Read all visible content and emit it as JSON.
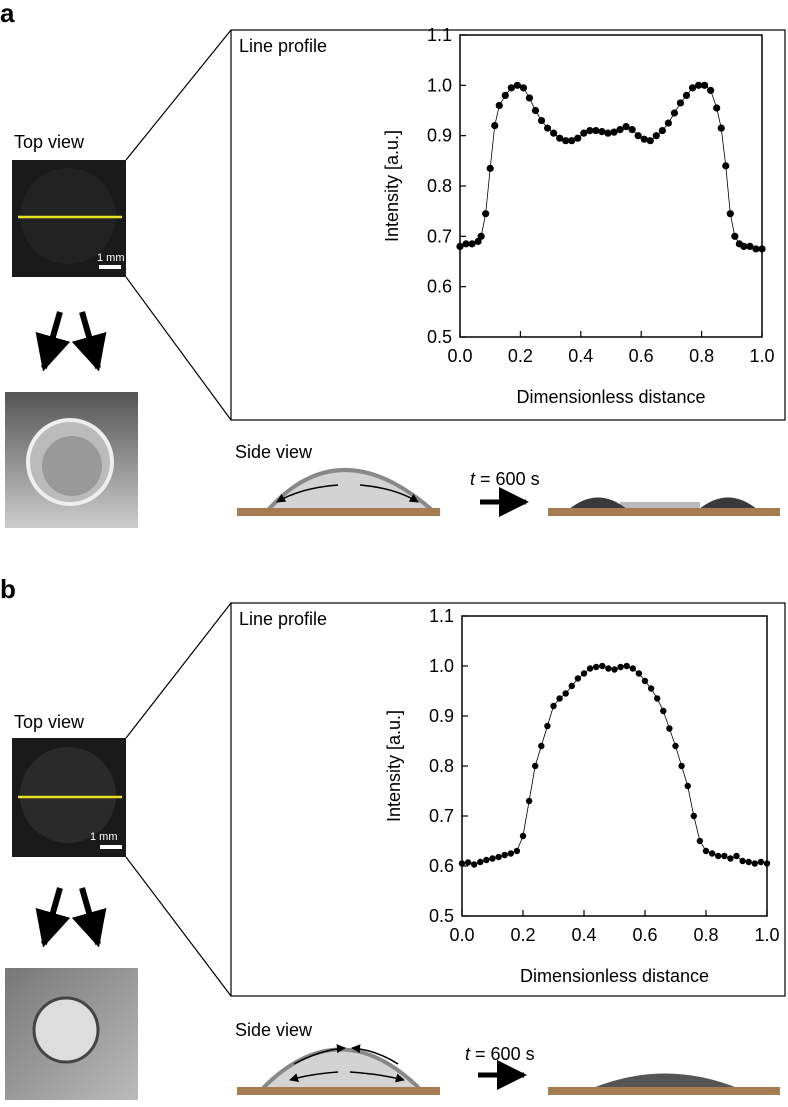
{
  "panels": [
    {
      "label": "a",
      "top_view": "Top view",
      "scale_bar": "1 mm",
      "side_view": "Side view",
      "time_symbol": "t",
      "time_value": "= 600 s"
    },
    {
      "label": "b",
      "top_view": "Top view",
      "scale_bar": "1 mm",
      "side_view": "Side view",
      "time_symbol": "t",
      "time_value": "= 600 s"
    }
  ],
  "chart_data": [
    {
      "type": "line",
      "title": "Line profile",
      "xlabel": "Dimensionless distance",
      "ylabel": "Intensity [a.u.]",
      "color": "#000000",
      "xlim": [
        0,
        1
      ],
      "ylim": [
        0.5,
        1.1
      ],
      "xticks": [
        {
          "value": 0,
          "label": "0.0"
        },
        0.2,
        0.4,
        0.6,
        0.8,
        {
          "value": 1,
          "label": "1.0"
        }
      ],
      "yticks": [
        0.5,
        0.6,
        0.7,
        0.8,
        0.9,
        {
          "value": 1,
          "label": "1.0"
        },
        1.1
      ],
      "x": [
        0,
        0.02,
        0.04,
        0.06,
        0.07,
        0.085,
        0.1,
        0.115,
        0.13,
        0.15,
        0.17,
        0.19,
        0.21,
        0.23,
        0.25,
        0.27,
        0.29,
        0.31,
        0.33,
        0.35,
        0.37,
        0.39,
        0.41,
        0.43,
        0.45,
        0.47,
        0.49,
        0.51,
        0.53,
        0.55,
        0.57,
        0.59,
        0.61,
        0.63,
        0.65,
        0.67,
        0.69,
        0.71,
        0.73,
        0.75,
        0.77,
        0.79,
        0.81,
        0.83,
        0.85,
        0.865,
        0.88,
        0.895,
        0.91,
        0.925,
        0.94,
        0.96,
        0.98,
        1.0
      ],
      "values": [
        0.68,
        0.685,
        0.685,
        0.69,
        0.7,
        0.745,
        0.835,
        0.92,
        0.96,
        0.98,
        0.995,
        1.0,
        0.995,
        0.975,
        0.95,
        0.93,
        0.915,
        0.905,
        0.895,
        0.89,
        0.89,
        0.895,
        0.905,
        0.91,
        0.91,
        0.908,
        0.905,
        0.907,
        0.912,
        0.918,
        0.912,
        0.9,
        0.893,
        0.89,
        0.9,
        0.91,
        0.925,
        0.945,
        0.965,
        0.98,
        0.995,
        1.0,
        1.0,
        0.99,
        0.955,
        0.915,
        0.84,
        0.745,
        0.7,
        0.685,
        0.68,
        0.68,
        0.675,
        0.675
      ]
    },
    {
      "type": "line",
      "title": "Line profile",
      "xlabel": "Dimensionless distance",
      "ylabel": "Intensity [a.u.]",
      "color": "#000000",
      "xlim": [
        0,
        1
      ],
      "ylim": [
        0.5,
        1.1
      ],
      "xticks": [
        {
          "value": 0,
          "label": "0.0"
        },
        0.2,
        0.4,
        0.6,
        0.8,
        {
          "value": 1,
          "label": "1.0"
        }
      ],
      "yticks": [
        0.5,
        0.6,
        0.7,
        0.8,
        0.9,
        {
          "value": 1,
          "label": "1.0"
        },
        1.1
      ],
      "x": [
        0,
        0.02,
        0.04,
        0.06,
        0.08,
        0.1,
        0.12,
        0.14,
        0.16,
        0.18,
        0.2,
        0.22,
        0.24,
        0.26,
        0.28,
        0.3,
        0.32,
        0.34,
        0.36,
        0.38,
        0.4,
        0.42,
        0.44,
        0.46,
        0.48,
        0.5,
        0.52,
        0.54,
        0.56,
        0.58,
        0.6,
        0.62,
        0.64,
        0.66,
        0.68,
        0.7,
        0.72,
        0.74,
        0.76,
        0.78,
        0.8,
        0.82,
        0.84,
        0.86,
        0.88,
        0.9,
        0.92,
        0.94,
        0.96,
        0.98,
        1.0
      ],
      "values": [
        0.605,
        0.607,
        0.603,
        0.608,
        0.612,
        0.615,
        0.618,
        0.622,
        0.625,
        0.63,
        0.66,
        0.73,
        0.8,
        0.84,
        0.88,
        0.92,
        0.935,
        0.945,
        0.96,
        0.975,
        0.985,
        0.995,
        0.998,
        1.0,
        0.995,
        0.993,
        0.998,
        1.0,
        0.995,
        0.985,
        0.97,
        0.955,
        0.935,
        0.91,
        0.875,
        0.84,
        0.8,
        0.76,
        0.7,
        0.65,
        0.63,
        0.625,
        0.62,
        0.62,
        0.615,
        0.62,
        0.61,
        0.608,
        0.605,
        0.608,
        0.605
      ]
    }
  ]
}
